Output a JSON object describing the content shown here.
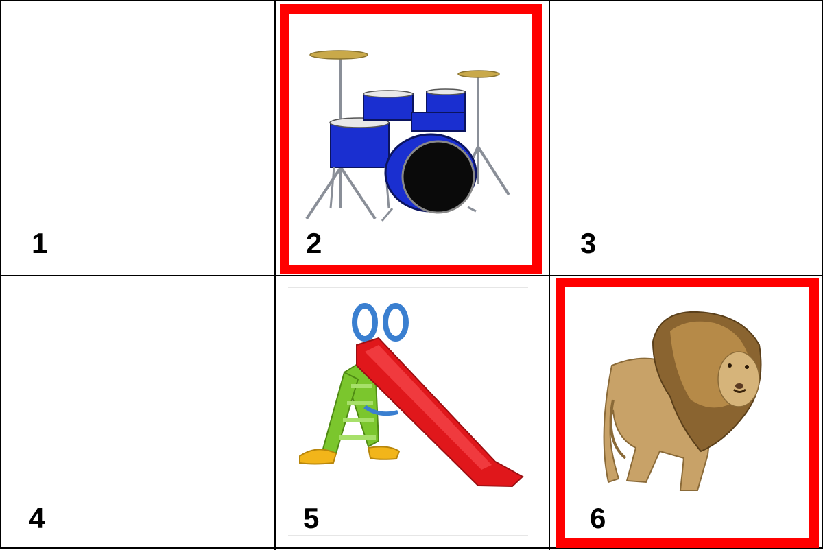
{
  "cells": [
    {
      "number": "1",
      "content": "",
      "selected": false
    },
    {
      "number": "2",
      "content": "drum-kit",
      "selected": true
    },
    {
      "number": "3",
      "content": "",
      "selected": false
    },
    {
      "number": "4",
      "content": "",
      "selected": false
    },
    {
      "number": "5",
      "content": "slide",
      "selected": false
    },
    {
      "number": "6",
      "content": "lion",
      "selected": true
    }
  ],
  "colors": {
    "selection_border": "#ff0000",
    "grid_line": "#000000"
  }
}
